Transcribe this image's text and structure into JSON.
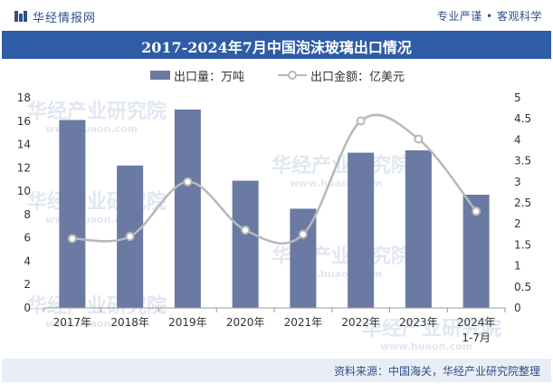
{
  "header": {
    "logo_text": "华经情报网",
    "slogan": "专业严谨 • 客观科学"
  },
  "watermark": {
    "text": "华经产业研究院",
    "url": "www.huaon.com"
  },
  "footer": {
    "source": "资料来源：中国海关，华经产业研究院整理"
  },
  "colors": {
    "bar": "#6a7aa3",
    "line": "#b8b8b8",
    "title_bg": "#2e5ca6",
    "brand": "#2f4f86"
  },
  "chart_data": {
    "type": "bar",
    "title": "2017-2024年7月中国泡沫玻璃出口情况",
    "categories": [
      "2017年",
      "2018年",
      "2019年",
      "2020年",
      "2021年",
      "2022年",
      "2023年",
      "2024年"
    ],
    "category_sublabels": [
      "",
      "",
      "",
      "",
      "",
      "",
      "",
      "1-7月"
    ],
    "series": [
      {
        "name": "出口量：万吨",
        "type": "bar",
        "axis": "left",
        "values": [
          16.1,
          12.2,
          17.0,
          10.9,
          8.5,
          13.3,
          13.5,
          9.7
        ]
      },
      {
        "name": "出口金额：亿美元",
        "type": "line",
        "axis": "right",
        "values": [
          1.65,
          1.7,
          3.0,
          1.85,
          1.75,
          4.45,
          4.02,
          2.3
        ]
      }
    ],
    "y_left": {
      "min": 0,
      "max": 18,
      "ticks": [
        "0",
        "2",
        "4",
        "6",
        "8",
        "10",
        "12",
        "14",
        "16",
        "18"
      ]
    },
    "y_right": {
      "min": 0,
      "max": 5,
      "ticks": [
        "0",
        "0.5",
        "1",
        "1.5",
        "2",
        "2.5",
        "3",
        "3.5",
        "4",
        "4.5",
        "5"
      ]
    },
    "legend_position": "top"
  }
}
